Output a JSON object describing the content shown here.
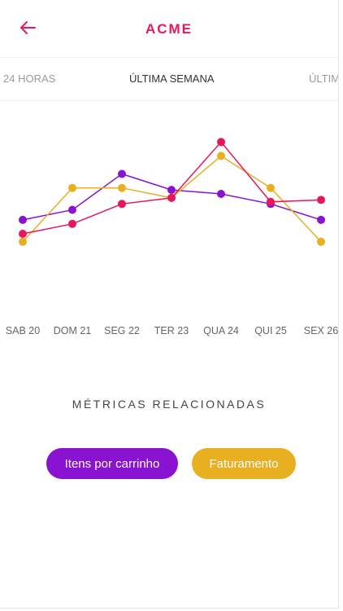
{
  "header": {
    "brand": "ACME"
  },
  "tabs": [
    {
      "label": "24 HORAS"
    },
    {
      "label": "ÚLTIMA SEMANA"
    },
    {
      "label": "ÚLTIMO MÊS"
    }
  ],
  "chart_data": {
    "type": "line",
    "categories": [
      "SAB 20",
      "DOM 21",
      "SEG 22",
      "TER 23",
      "QUA 24",
      "QUI 25",
      "SEX 26"
    ],
    "series": [
      {
        "color": "#8a12d1",
        "values": [
          47,
          52,
          70,
          62,
          60,
          55,
          47
        ]
      },
      {
        "color": "#e8b020",
        "values": [
          36,
          63,
          63,
          58,
          79,
          63,
          36
        ]
      },
      {
        "color": "#e8175d",
        "values": [
          40,
          45,
          55,
          58,
          86,
          56,
          57
        ]
      }
    ],
    "ylim": [
      0,
      100
    ]
  },
  "related": {
    "title": "MÉTRICAS RELACIONADAS",
    "buttons": [
      {
        "label": "Itens por carrinho",
        "color": "#8a12d1"
      },
      {
        "label": "Faturamento",
        "color": "#e8b020"
      }
    ]
  }
}
